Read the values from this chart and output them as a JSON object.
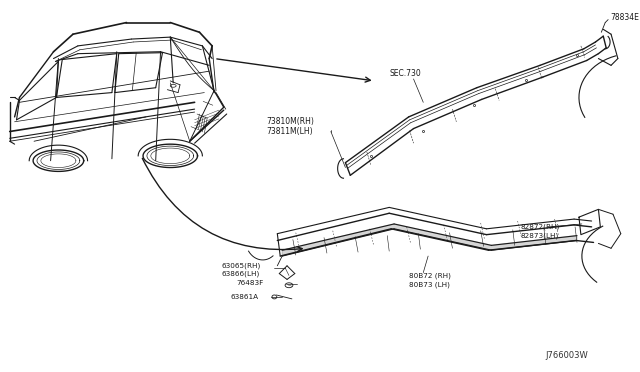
{
  "bg_color": "#ffffff",
  "line_color": "#1a1a1a",
  "text_color": "#1a1a1a",
  "fig_width": 6.4,
  "fig_height": 3.72,
  "dpi": 100,
  "watermark": "J766003W",
  "labels": {
    "sec730": "SEC.730",
    "part1_rh": "73810M(RH)",
    "part1_lh": "73811M(LH)",
    "part2_rh": "82872(RH)",
    "part2_lh": "82873(LH)",
    "part3_rh": "80B72 (RH)",
    "part3_lh": "80B73 (LH)",
    "part4_rh": "63065(RH)",
    "part4_lh": "63866(LH)",
    "part5": "76483F",
    "part6": "63861A",
    "part7": "78834E"
  }
}
